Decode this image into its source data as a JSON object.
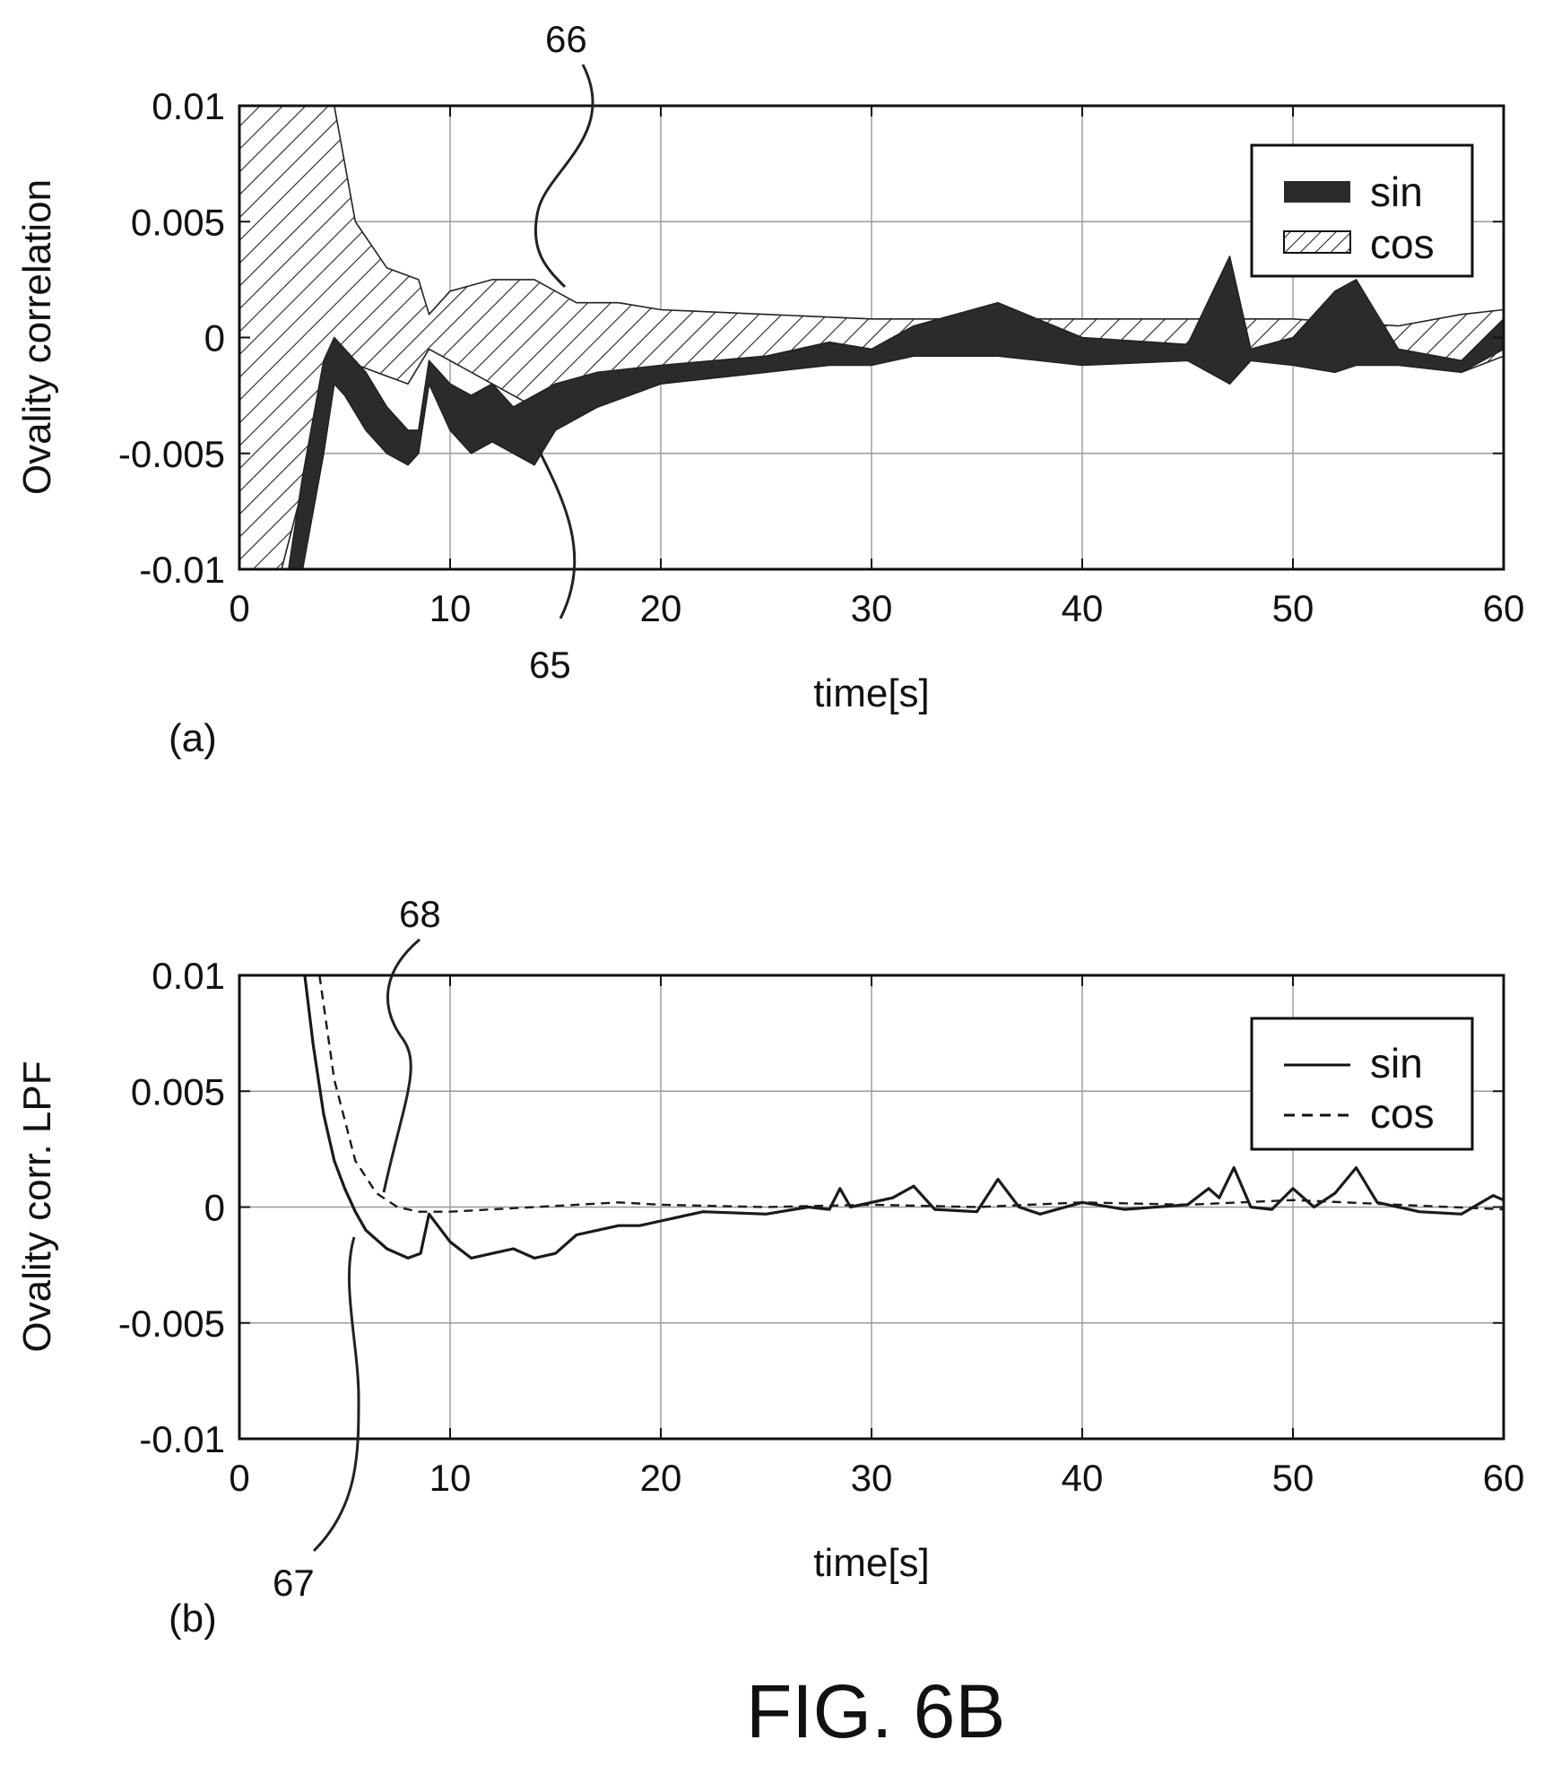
{
  "figure_title": "FIG. 6B",
  "chart_data": [
    {
      "type": "area",
      "panel_label": "(a)",
      "xlabel": "time[s]",
      "ylabel": "Ovality correlation",
      "xlim": [
        0,
        60
      ],
      "ylim": [
        -0.01,
        0.01
      ],
      "x_ticks": [
        "0",
        "10",
        "20",
        "30",
        "40",
        "50",
        "60"
      ],
      "y_ticks": [
        "0.01",
        "0.005",
        "0",
        "-0.005",
        "-0.01"
      ],
      "grid": true,
      "legend_position": "top-right",
      "legend": [
        "sin",
        "cos"
      ],
      "reference_numerals": [
        "66",
        "65"
      ],
      "series": [
        {
          "name": "sin",
          "fill": "solid-dark",
          "upper": [
            [
              2,
              -0.012
            ],
            [
              3,
              -0.006
            ],
            [
              4,
              -0.001
            ],
            [
              4.5,
              0
            ],
            [
              5,
              -0.0005
            ],
            [
              6,
              -0.0015
            ],
            [
              7,
              -0.003
            ],
            [
              8,
              -0.004
            ],
            [
              8.5,
              -0.004
            ],
            [
              9,
              -0.001
            ],
            [
              10,
              -0.002
            ],
            [
              11,
              -0.0025
            ],
            [
              12,
              -0.002
            ],
            [
              13,
              -0.003
            ],
            [
              14,
              -0.0025
            ],
            [
              15,
              -0.002
            ],
            [
              17,
              -0.0015
            ],
            [
              20,
              -0.0012
            ],
            [
              25,
              -0.0008
            ],
            [
              28,
              -0.0002
            ],
            [
              30,
              -0.0005
            ],
            [
              32,
              0.0005
            ],
            [
              36,
              0.0015
            ],
            [
              40,
              0
            ],
            [
              45,
              -0.0003
            ],
            [
              47,
              0.0035
            ],
            [
              48,
              -0.0005
            ],
            [
              50,
              0
            ],
            [
              52,
              0.002
            ],
            [
              53,
              0.0025
            ],
            [
              55,
              -0.0005
            ],
            [
              58,
              -0.001
            ],
            [
              60,
              0.0008
            ]
          ],
          "lower": [
            [
              2,
              -0.012
            ],
            [
              3,
              -0.01
            ],
            [
              4,
              -0.005
            ],
            [
              4.5,
              -0.002
            ],
            [
              5,
              -0.0025
            ],
            [
              6,
              -0.004
            ],
            [
              7,
              -0.005
            ],
            [
              8,
              -0.0055
            ],
            [
              8.5,
              -0.005
            ],
            [
              9,
              -0.002
            ],
            [
              10,
              -0.004
            ],
            [
              11,
              -0.005
            ],
            [
              12,
              -0.0045
            ],
            [
              13,
              -0.005
            ],
            [
              14,
              -0.0055
            ],
            [
              15,
              -0.004
            ],
            [
              17,
              -0.003
            ],
            [
              20,
              -0.002
            ],
            [
              25,
              -0.0015
            ],
            [
              28,
              -0.0012
            ],
            [
              30,
              -0.0012
            ],
            [
              32,
              -0.0008
            ],
            [
              36,
              -0.0008
            ],
            [
              40,
              -0.0012
            ],
            [
              45,
              -0.001
            ],
            [
              47,
              -0.002
            ],
            [
              48,
              -0.001
            ],
            [
              50,
              -0.0012
            ],
            [
              52,
              -0.0015
            ],
            [
              53,
              -0.0012
            ],
            [
              55,
              -0.0012
            ],
            [
              58,
              -0.0015
            ],
            [
              60,
              -0.0005
            ]
          ]
        },
        {
          "name": "cos",
          "fill": "hatched",
          "upper": [
            [
              0,
              0.01
            ],
            [
              4.5,
              0.01
            ],
            [
              5.5,
              0.005
            ],
            [
              7,
              0.003
            ],
            [
              8.5,
              0.0025
            ],
            [
              9,
              0.001
            ],
            [
              10,
              0.002
            ],
            [
              12,
              0.0025
            ],
            [
              14,
              0.0025
            ],
            [
              16,
              0.0015
            ],
            [
              18,
              0.0015
            ],
            [
              20,
              0.0012
            ],
            [
              25,
              0.001
            ],
            [
              30,
              0.0008
            ],
            [
              35,
              0.0008
            ],
            [
              40,
              0.0008
            ],
            [
              45,
              0.0008
            ],
            [
              50,
              0.0008
            ],
            [
              55,
              0.0005
            ],
            [
              58,
              0.001
            ],
            [
              60,
              0.0012
            ]
          ],
          "lower": [
            [
              0,
              -0.01
            ],
            [
              2,
              -0.01
            ],
            [
              4,
              -0.003
            ],
            [
              5,
              -0.001
            ],
            [
              8,
              -0.002
            ],
            [
              9,
              -0.0005
            ],
            [
              10,
              -0.001
            ],
            [
              12,
              -0.002
            ],
            [
              14,
              -0.003
            ],
            [
              16,
              -0.002
            ],
            [
              20,
              -0.002
            ],
            [
              25,
              -0.001
            ],
            [
              30,
              -0.0008
            ],
            [
              35,
              -0.0005
            ],
            [
              40,
              -0.0005
            ],
            [
              45,
              -0.0005
            ],
            [
              50,
              -0.0005
            ],
            [
              55,
              -0.0005
            ],
            [
              58,
              -0.0015
            ],
            [
              60,
              -0.0008
            ]
          ]
        }
      ]
    },
    {
      "type": "line",
      "panel_label": "(b)",
      "xlabel": "time[s]",
      "ylabel": "Ovality corr. LPF",
      "xlim": [
        0,
        60
      ],
      "ylim": [
        -0.01,
        0.01
      ],
      "x_ticks": [
        "0",
        "10",
        "20",
        "30",
        "40",
        "50",
        "60"
      ],
      "y_ticks": [
        "0.01",
        "0.005",
        "0",
        "-0.005",
        "-0.01"
      ],
      "grid": true,
      "legend_position": "top-right",
      "legend": [
        "sin",
        "cos"
      ],
      "reference_numerals": [
        "68",
        "67"
      ],
      "series": [
        {
          "name": "sin",
          "style": "solid",
          "points": [
            [
              3.1,
              0.01
            ],
            [
              3.5,
              0.007
            ],
            [
              4,
              0.004
            ],
            [
              4.5,
              0.002
            ],
            [
              5,
              0.0008
            ],
            [
              5.5,
              -0.0002
            ],
            [
              6,
              -0.001
            ],
            [
              7,
              -0.0018
            ],
            [
              8,
              -0.0022
            ],
            [
              8.6,
              -0.002
            ],
            [
              9,
              -0.0003
            ],
            [
              10,
              -0.0015
            ],
            [
              11,
              -0.0022
            ],
            [
              12,
              -0.002
            ],
            [
              13,
              -0.0018
            ],
            [
              14,
              -0.0022
            ],
            [
              15,
              -0.002
            ],
            [
              16,
              -0.0012
            ],
            [
              17,
              -0.001
            ],
            [
              18,
              -0.0008
            ],
            [
              19,
              -0.0008
            ],
            [
              20,
              -0.0006
            ],
            [
              22,
              -0.0002
            ],
            [
              25,
              -0.0003
            ],
            [
              27,
              0
            ],
            [
              28,
              -0.0001
            ],
            [
              28.5,
              0.0008
            ],
            [
              29,
              0
            ],
            [
              31,
              0.0004
            ],
            [
              32,
              0.0009
            ],
            [
              33,
              -0.0001
            ],
            [
              35,
              -0.0002
            ],
            [
              36,
              0.0012
            ],
            [
              37,
              0
            ],
            [
              38,
              -0.0003
            ],
            [
              40,
              0.0002
            ],
            [
              42,
              -0.0001
            ],
            [
              45,
              0.0001
            ],
            [
              46,
              0.0008
            ],
            [
              46.5,
              0.0004
            ],
            [
              47.2,
              0.0017
            ],
            [
              48,
              0
            ],
            [
              49,
              -0.0001
            ],
            [
              50,
              0.0008
            ],
            [
              51,
              0
            ],
            [
              52,
              0.0006
            ],
            [
              53,
              0.0017
            ],
            [
              54,
              0.0002
            ],
            [
              56,
              -0.0002
            ],
            [
              58,
              -0.0003
            ],
            [
              59.5,
              0.0005
            ],
            [
              60,
              0.0003
            ]
          ]
        },
        {
          "name": "cos",
          "style": "dashed",
          "points": [
            [
              3.8,
              0.01
            ],
            [
              4.5,
              0.0055
            ],
            [
              5.5,
              0.002
            ],
            [
              6.5,
              0.0006
            ],
            [
              7.5,
              0
            ],
            [
              8.5,
              -0.0002
            ],
            [
              10,
              -0.0002
            ],
            [
              12,
              -0.0001
            ],
            [
              14,
              0
            ],
            [
              16,
              0.0001
            ],
            [
              18,
              0.0002
            ],
            [
              20,
              0.0001
            ],
            [
              25,
              0
            ],
            [
              30,
              0.0001
            ],
            [
              35,
              0
            ],
            [
              40,
              0.0002
            ],
            [
              45,
              0.0001
            ],
            [
              50,
              0.0003
            ],
            [
              55,
              0.0001
            ],
            [
              60,
              -0.0001
            ]
          ]
        }
      ]
    }
  ]
}
